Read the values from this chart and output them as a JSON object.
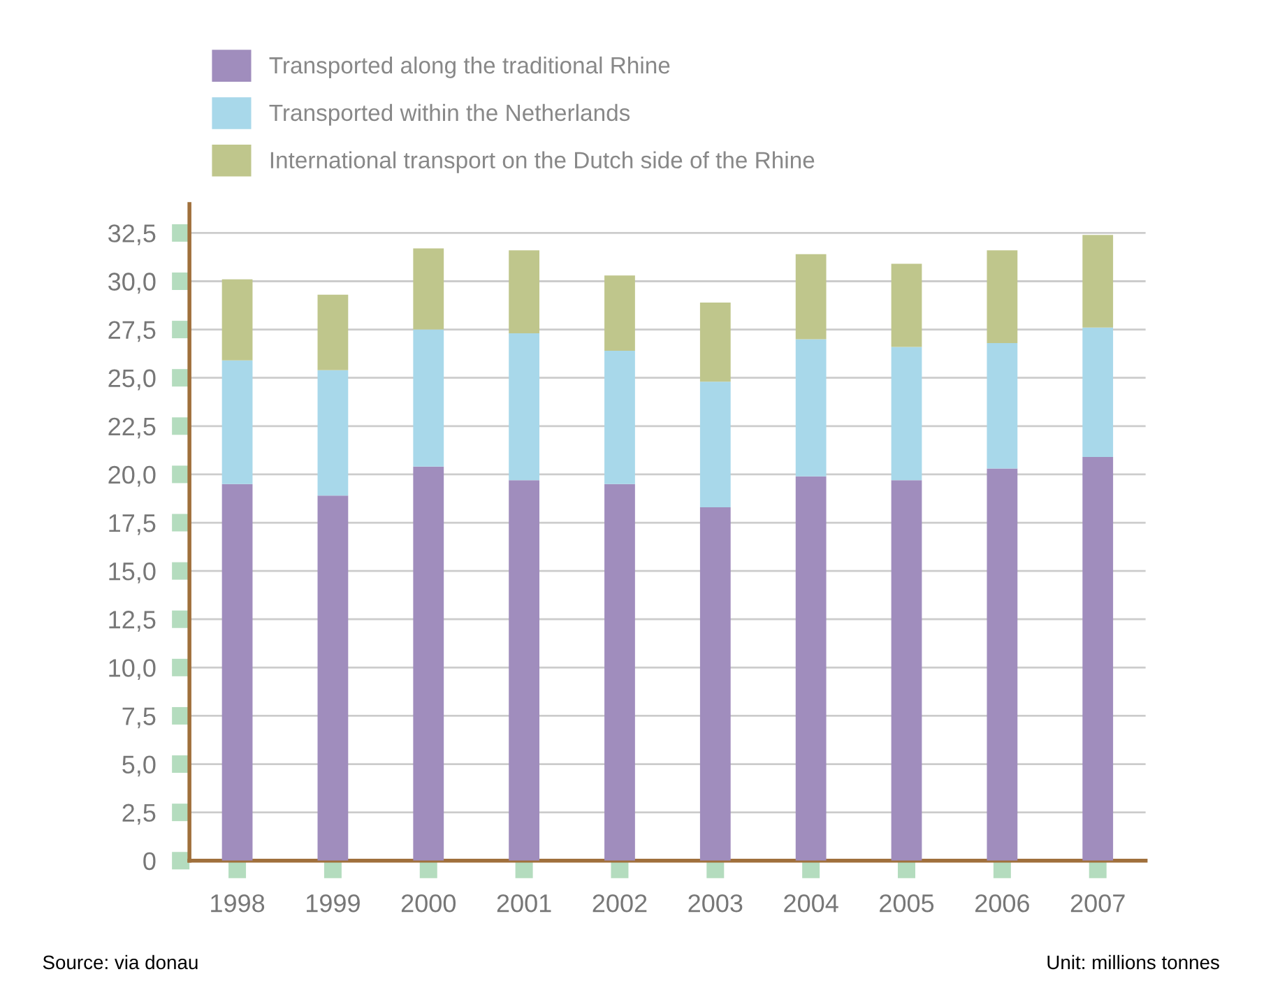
{
  "chart_data": {
    "type": "bar",
    "stacked": true,
    "categories": [
      "1998",
      "1999",
      "2000",
      "2001",
      "2002",
      "2003",
      "2004",
      "2005",
      "2006",
      "2007"
    ],
    "series": [
      {
        "name": "Transported along the traditional Rhine",
        "color": "#a08dbd",
        "values": [
          19.5,
          18.9,
          20.4,
          19.7,
          19.5,
          18.3,
          19.9,
          19.7,
          20.3,
          20.9
        ]
      },
      {
        "name": "Transported within the Netherlands",
        "color": "#a8d8ea",
        "values": [
          6.4,
          6.5,
          7.1,
          7.6,
          6.9,
          6.5,
          7.1,
          6.9,
          6.5,
          6.7
        ]
      },
      {
        "name": "International transport on the Dutch side of the Rhine",
        "color": "#bfc68c",
        "values": [
          4.2,
          3.9,
          4.2,
          4.3,
          3.9,
          4.1,
          4.4,
          4.3,
          4.8,
          4.8
        ]
      }
    ],
    "ylim": [
      0,
      34
    ],
    "yticks": [
      0,
      {
        "value": 2.5,
        "label": "2,5"
      },
      {
        "value": 5,
        "label": "5,0"
      },
      {
        "value": 7.5,
        "label": "7,5"
      },
      {
        "value": 10,
        "label": "10,0"
      },
      {
        "value": 12.5,
        "label": "12,5"
      },
      {
        "value": 15,
        "label": "15,0"
      },
      {
        "value": 17.5,
        "label": "17,5"
      },
      {
        "value": 20,
        "label": "20,0"
      },
      {
        "value": 22.5,
        "label": "22,5"
      },
      {
        "value": 25,
        "label": "25,0"
      },
      {
        "value": 27.5,
        "label": "27,5"
      },
      {
        "value": 30,
        "label": "30,0"
      },
      {
        "value": 32.5,
        "label": "32,5"
      }
    ],
    "grid": "y",
    "legend": "top left",
    "annotations": [
      "Source: via donau",
      "Unit: millions tonnes"
    ]
  }
}
